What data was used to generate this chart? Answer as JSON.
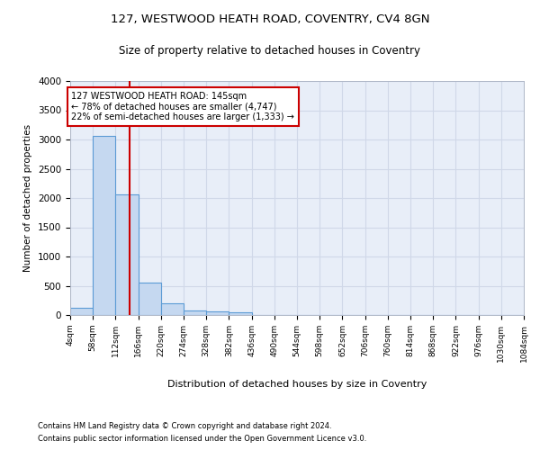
{
  "title1": "127, WESTWOOD HEATH ROAD, COVENTRY, CV4 8GN",
  "title2": "Size of property relative to detached houses in Coventry",
  "xlabel": "Distribution of detached houses by size in Coventry",
  "ylabel": "Number of detached properties",
  "footnote1": "Contains HM Land Registry data © Crown copyright and database right 2024.",
  "footnote2": "Contains public sector information licensed under the Open Government Licence v3.0.",
  "bin_edges": [
    4,
    58,
    112,
    166,
    220,
    274,
    328,
    382,
    436,
    490,
    544,
    598,
    652,
    706,
    760,
    814,
    868,
    922,
    976,
    1030,
    1084
  ],
  "bar_values": [
    130,
    3060,
    2060,
    560,
    200,
    80,
    55,
    40,
    0,
    0,
    0,
    0,
    0,
    0,
    0,
    0,
    0,
    0,
    0,
    0
  ],
  "bar_color": "#c5d8f0",
  "bar_edge_color": "#5b9bd5",
  "grid_color": "#d0d8e8",
  "bg_color": "#e8eef8",
  "property_size": 145,
  "property_label": "127 WESTWOOD HEATH ROAD: 145sqm",
  "annotation_line1": "← 78% of detached houses are smaller (4,747)",
  "annotation_line2": "22% of semi-detached houses are larger (1,333) →",
  "vline_color": "#cc0000",
  "annotation_box_color": "#cc0000",
  "ylim": [
    0,
    4000
  ],
  "yticks": [
    0,
    500,
    1000,
    1500,
    2000,
    2500,
    3000,
    3500,
    4000
  ]
}
